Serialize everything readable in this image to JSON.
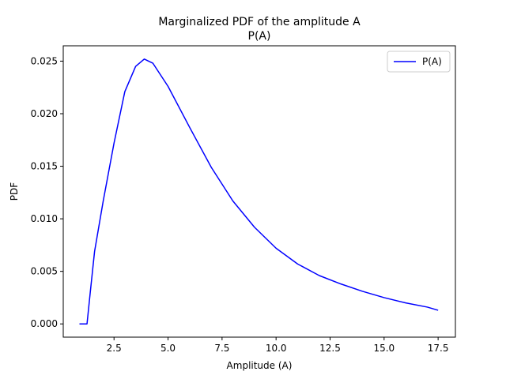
{
  "chart_data": {
    "type": "line",
    "title": "Marginalized PDF of the amplitude A",
    "subtitle": "P(A)",
    "xlabel": "Amplitude (A)",
    "ylabel": "PDF",
    "xlim": [
      0.15,
      18.3
    ],
    "ylim": [
      -0.00126,
      0.02646
    ],
    "xticks": [
      2.5,
      5.0,
      7.5,
      10.0,
      12.5,
      15.0,
      17.5
    ],
    "xtick_labels": [
      "2.5",
      "5.0",
      "7.5",
      "10.0",
      "12.5",
      "15.0",
      "17.5"
    ],
    "yticks": [
      0.0,
      0.005,
      0.01,
      0.015,
      0.02,
      0.025
    ],
    "ytick_labels": [
      "0.000",
      "0.005",
      "0.010",
      "0.015",
      "0.020",
      "0.025"
    ],
    "grid": false,
    "legend": {
      "position": "top-right",
      "entries": [
        "P(A)"
      ]
    },
    "series": [
      {
        "name": "P(A)",
        "color": "#0000ff",
        "x": [
          0.9,
          1.25,
          1.4,
          1.6,
          2.0,
          2.5,
          3.0,
          3.5,
          3.9,
          4.3,
          5.0,
          6.0,
          7.0,
          8.0,
          9.0,
          10.0,
          11.0,
          12.0,
          13.0,
          14.0,
          15.0,
          16.0,
          17.0,
          17.5
        ],
        "y": [
          0.0,
          0.0,
          0.003,
          0.0069,
          0.0117,
          0.0172,
          0.0221,
          0.0245,
          0.0252,
          0.0248,
          0.0226,
          0.0187,
          0.0149,
          0.0117,
          0.0092,
          0.0072,
          0.0057,
          0.0046,
          0.0038,
          0.0031,
          0.0025,
          0.002,
          0.0016,
          0.0013
        ]
      }
    ]
  }
}
